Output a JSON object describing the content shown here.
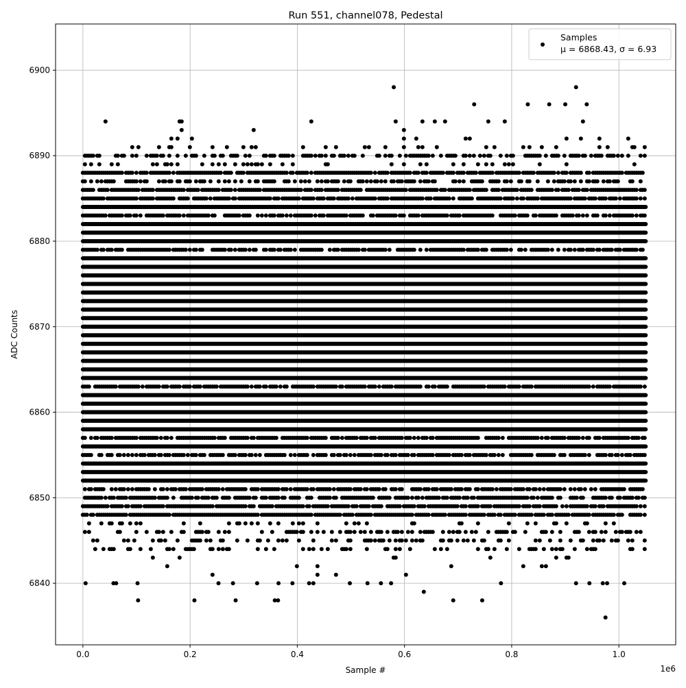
{
  "chart_data": {
    "type": "scatter",
    "title": "Run 551, channel078, Pedestal",
    "xlabel": "Sample #",
    "ylabel": "ADC Counts",
    "x_offset_label": "1e6",
    "xlim": [
      -51000,
      1106000
    ],
    "ylim": [
      6832.8,
      6905.4
    ],
    "x_ticks": [
      0,
      200000,
      400000,
      600000,
      800000,
      1000000
    ],
    "x_tick_labels": [
      "0.0",
      "0.2",
      "0.4",
      "0.6",
      "0.8",
      "1.0"
    ],
    "y_ticks": [
      6840,
      6850,
      6860,
      6870,
      6880,
      6890,
      6900
    ],
    "y_tick_labels": [
      "6840",
      "6850",
      "6860",
      "6870",
      "6880",
      "6890",
      "6900"
    ],
    "grid": true,
    "marker_color": "#000000",
    "grid_color": "#b0b0b0",
    "legend": {
      "placement": "top-right",
      "series_name": "Samples",
      "stats_label": "μ = 6868.43, σ = 6.93"
    },
    "stats": {
      "mean": 6868.43,
      "sigma": 6.93
    },
    "x_range": [
      0,
      1050000
    ],
    "level_density": {
      "6841": 0.01,
      "6842": 0.02,
      "6843": 0.02,
      "6844": 0.25,
      "6845": 0.25,
      "6846": 0.35,
      "6847": 0.15,
      "6848": 0.9,
      "6849": 0.9,
      "6850": 0.8,
      "6851": 0.7,
      "6852": 1,
      "6853": 1,
      "6854": 1,
      "6855": 0.75,
      "6856": 1,
      "6857": 0.85,
      "6858": 1,
      "6859": 1,
      "6860": 1,
      "6861": 1,
      "6862": 1,
      "6863": 0.85,
      "6864": 1,
      "6865": 1,
      "6866": 1,
      "6867": 1,
      "6868": 1,
      "6869": 1,
      "6870": 1,
      "6871": 1,
      "6872": 1,
      "6873": 1,
      "6874": 1,
      "6875": 1,
      "6876": 1,
      "6877": 1,
      "6878": 1,
      "6879": 0.75,
      "6880": 1,
      "6881": 1,
      "6882": 1,
      "6883": 0.75,
      "6884": 1,
      "6885": 0.85,
      "6886": 0.9,
      "6887": 0.5,
      "6888": 0.9,
      "6889": 0.15,
      "6890": 0.5,
      "6891": 0.12,
      "6892": 0.05,
      "6893": 0.01,
      "6894": 0.04
    },
    "outliers": [
      [
        580000,
        6898
      ],
      [
        920000,
        6898
      ],
      [
        730000,
        6896
      ],
      [
        830000,
        6896
      ],
      [
        870000,
        6896
      ],
      [
        900000,
        6896
      ],
      [
        940000,
        6896
      ],
      [
        975000,
        6836
      ],
      [
        103000,
        6838
      ],
      [
        208000,
        6838
      ],
      [
        285000,
        6838
      ],
      [
        358000,
        6838
      ],
      [
        364000,
        6838
      ],
      [
        691000,
        6838
      ],
      [
        745000,
        6838
      ],
      [
        636000,
        6839
      ],
      [
        5000,
        6840
      ],
      [
        57000,
        6840
      ],
      [
        62000,
        6840
      ],
      [
        102000,
        6840
      ],
      [
        253000,
        6840
      ],
      [
        280000,
        6840
      ],
      [
        325000,
        6840
      ],
      [
        365000,
        6840
      ],
      [
        391000,
        6840
      ],
      [
        422000,
        6840
      ],
      [
        430000,
        6840
      ],
      [
        498000,
        6840
      ],
      [
        531000,
        6840
      ],
      [
        556000,
        6840
      ],
      [
        575000,
        6840
      ],
      [
        780000,
        6840
      ],
      [
        920000,
        6840
      ],
      [
        945000,
        6840
      ],
      [
        970000,
        6840
      ],
      [
        978000,
        6840
      ],
      [
        1010000,
        6840
      ]
    ]
  }
}
